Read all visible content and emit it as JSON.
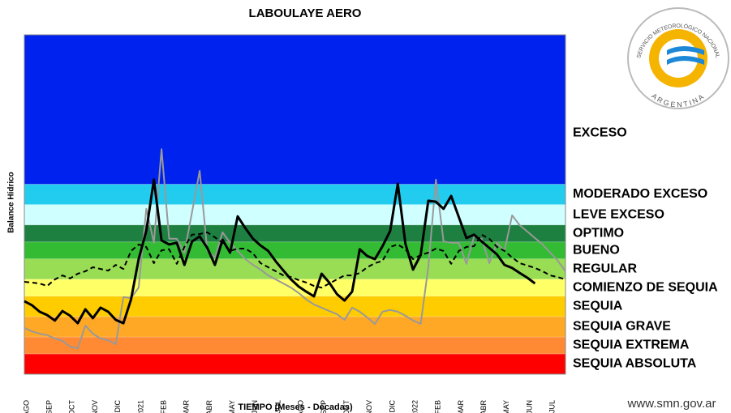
{
  "chart_data": {
    "type": "line",
    "title": "LABOULAYE  AERO",
    "y_label": "Balance Hídrico",
    "x_label": "TIEMPO (Meses  - Décadas)",
    "ylim": [
      0,
      100
    ],
    "categories": [
      "AGO",
      null,
      null,
      "SEP",
      null,
      null,
      "OCT",
      null,
      null,
      "NOV",
      null,
      null,
      "DIC",
      null,
      null,
      "E2021",
      null,
      null,
      "FEB",
      null,
      null,
      "MAR",
      null,
      null,
      "ABR",
      null,
      null,
      "MAY",
      null,
      null,
      "JUN",
      null,
      null,
      "JUL",
      null,
      null,
      "AGO",
      null,
      null,
      "SEP",
      null,
      null,
      "OCT",
      null,
      null,
      "NOV",
      null,
      null,
      "DIC",
      null,
      null,
      "E2022",
      null,
      null,
      "FEB",
      null,
      null,
      "MAR",
      null,
      null,
      "ABR",
      null,
      null,
      "MAY",
      null,
      null,
      "JUN",
      null,
      null,
      "JUL",
      null,
      null
    ],
    "bands": [
      {
        "label": "SEQUIA ABSOLUTA",
        "color": "#ff0000",
        "from": 0,
        "to": 6
      },
      {
        "label": "SEQUIA EXTREMA",
        "color": "#ff8a33",
        "from": 6,
        "to": 11
      },
      {
        "label": "SEQUIA GRAVE",
        "color": "#ffa826",
        "from": 11,
        "to": 17
      },
      {
        "label": "SEQUIA",
        "color": "#ffcc00",
        "from": 17,
        "to": 23
      },
      {
        "label": "COMIENZO DE SEQUIA",
        "color": "#ffff66",
        "from": 23,
        "to": 28
      },
      {
        "label": "REGULAR",
        "color": "#99dd55",
        "from": 28,
        "to": 34
      },
      {
        "label": "BUENO",
        "color": "#33bb33",
        "from": 34,
        "to": 39
      },
      {
        "label": "OPTIMO",
        "color": "#1e8040",
        "from": 39,
        "to": 44
      },
      {
        "label": "LEVE EXCESO",
        "color": "#cfffff",
        "from": 44,
        "to": 50
      },
      {
        "label": "MODERADO EXCESO",
        "color": "#22ccee",
        "from": 50,
        "to": 56
      },
      {
        "label": "EXCESO",
        "color": "#0022ee",
        "from": 56,
        "to": 100
      }
    ],
    "series": [
      {
        "color": "#999999",
        "style": "solid",
        "values": [
          13.6,
          12.6,
          11.9,
          11.5,
          10.5,
          9.8,
          8.1,
          7.6,
          14.3,
          11.9,
          10.5,
          10.0,
          8.8,
          22.7,
          22.4,
          25.5,
          48.7,
          38.7,
          66.3,
          39.9,
          39.9,
          35.8,
          47.7,
          59.9,
          36.3,
          34.4,
          41.8,
          38.7,
          36.3,
          33.9,
          32.2,
          30.8,
          29.1,
          27.9,
          26.7,
          25.5,
          23.9,
          22.0,
          20.5,
          19.6,
          18.6,
          17.7,
          16.0,
          19.6,
          18.4,
          16.7,
          14.8,
          18.4,
          18.9,
          18.4,
          17.2,
          15.8,
          14.8,
          31.5,
          57.3,
          39.1,
          38.7,
          38.7,
          32.5,
          40.6,
          39.9,
          32.7,
          38.7,
          36.3,
          46.8,
          43.9,
          42.0,
          40.1,
          38.2,
          35.8,
          33.4,
          30.3
        ]
      },
      {
        "color": "#000000",
        "style": "dashed",
        "values": [
          27.2,
          27.0,
          26.7,
          26.0,
          27.9,
          29.1,
          28.2,
          29.6,
          30.3,
          31.5,
          31.0,
          30.5,
          32.2,
          31.0,
          36.3,
          38.2,
          37.5,
          32.7,
          36.5,
          36.8,
          32.5,
          37.5,
          41.1,
          41.3,
          41.8,
          40.3,
          38.7,
          36.3,
          37.0,
          37.0,
          35.6,
          32.7,
          31.5,
          30.3,
          29.1,
          28.6,
          27.7,
          27.0,
          26.0,
          25.5,
          26.7,
          27.9,
          29.1,
          29.1,
          29.8,
          31.5,
          32.7,
          33.4,
          37.5,
          38.2,
          36.8,
          33.9,
          35.1,
          35.8,
          37.0,
          36.3,
          32.5,
          36.3,
          37.5,
          37.7,
          41.1,
          39.9,
          37.5,
          36.3,
          34.4,
          32.7,
          32.0,
          31.3,
          30.3,
          29.1,
          28.6,
          27.9
        ]
      },
      {
        "color": "#000000",
        "style": "solid",
        "values": [
          21.5,
          20.3,
          18.4,
          17.4,
          15.8,
          18.6,
          17.2,
          15.0,
          19.1,
          16.5,
          19.6,
          18.4,
          16.0,
          15.0,
          22.0,
          33.9,
          42.2,
          57.3,
          39.4,
          38.2,
          38.7,
          32.2,
          39.1,
          40.6,
          37.2,
          32.2,
          39.6,
          35.8,
          46.5,
          43.0,
          39.9,
          37.9,
          36.3,
          33.2,
          30.5,
          27.9,
          25.8,
          24.3,
          22.9,
          29.6,
          27.0,
          23.6,
          21.7,
          24.3,
          36.8,
          34.8,
          33.9,
          37.7,
          42.2,
          56.1,
          38.4,
          30.8,
          35.1,
          51.1,
          50.8,
          48.7,
          52.5,
          46.3,
          40.1,
          41.1,
          39.1,
          37.2,
          35.3,
          32.2,
          31.3,
          29.8,
          28.4,
          26.7,
          null,
          null,
          null,
          null
        ]
      }
    ]
  },
  "logo": {
    "org": "SERVICIO METEOROLÓGICO NACIONAL",
    "country": "ARGENTINA"
  },
  "footer_url": "www.smn.gov.ar"
}
